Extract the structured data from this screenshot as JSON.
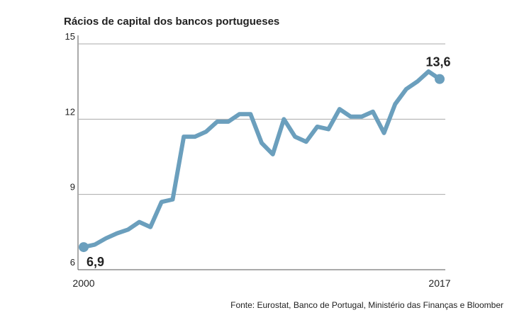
{
  "chart_data": {
    "type": "line",
    "title": "Rácios de capital dos bancos portugueses",
    "source": "Fonte: Eurostat, Banco de Portugal, Ministério das Finanças e Bloomber",
    "categories": [
      "2000",
      null,
      null,
      null,
      null,
      null,
      null,
      null,
      null,
      null,
      null,
      null,
      null,
      null,
      null,
      null,
      null,
      null,
      null,
      null,
      null,
      null,
      null,
      null,
      null,
      null,
      null,
      null,
      null,
      null,
      null,
      null,
      "2017"
    ],
    "series": [
      {
        "color": "#6b9fbd",
        "values": [
          6.9,
          7.0,
          7.25,
          7.45,
          7.6,
          7.9,
          7.7,
          8.7,
          8.8,
          11.3,
          11.3,
          11.5,
          11.9,
          11.9,
          12.2,
          12.2,
          11.05,
          10.6,
          12.0,
          11.3,
          11.1,
          11.7,
          11.6,
          12.4,
          12.1,
          12.1,
          12.3,
          11.45,
          12.6,
          13.2,
          13.5,
          13.9,
          13.6
        ],
        "value_labels": [
          "6,9",
          null,
          null,
          null,
          null,
          null,
          null,
          null,
          null,
          null,
          null,
          null,
          null,
          null,
          null,
          null,
          null,
          null,
          null,
          null,
          null,
          null,
          null,
          null,
          null,
          null,
          null,
          null,
          null,
          null,
          null,
          null,
          "13,6"
        ]
      }
    ],
    "ylim": [
      6,
      15
    ],
    "yticks": [
      6,
      9,
      12,
      15
    ],
    "grid": true
  }
}
